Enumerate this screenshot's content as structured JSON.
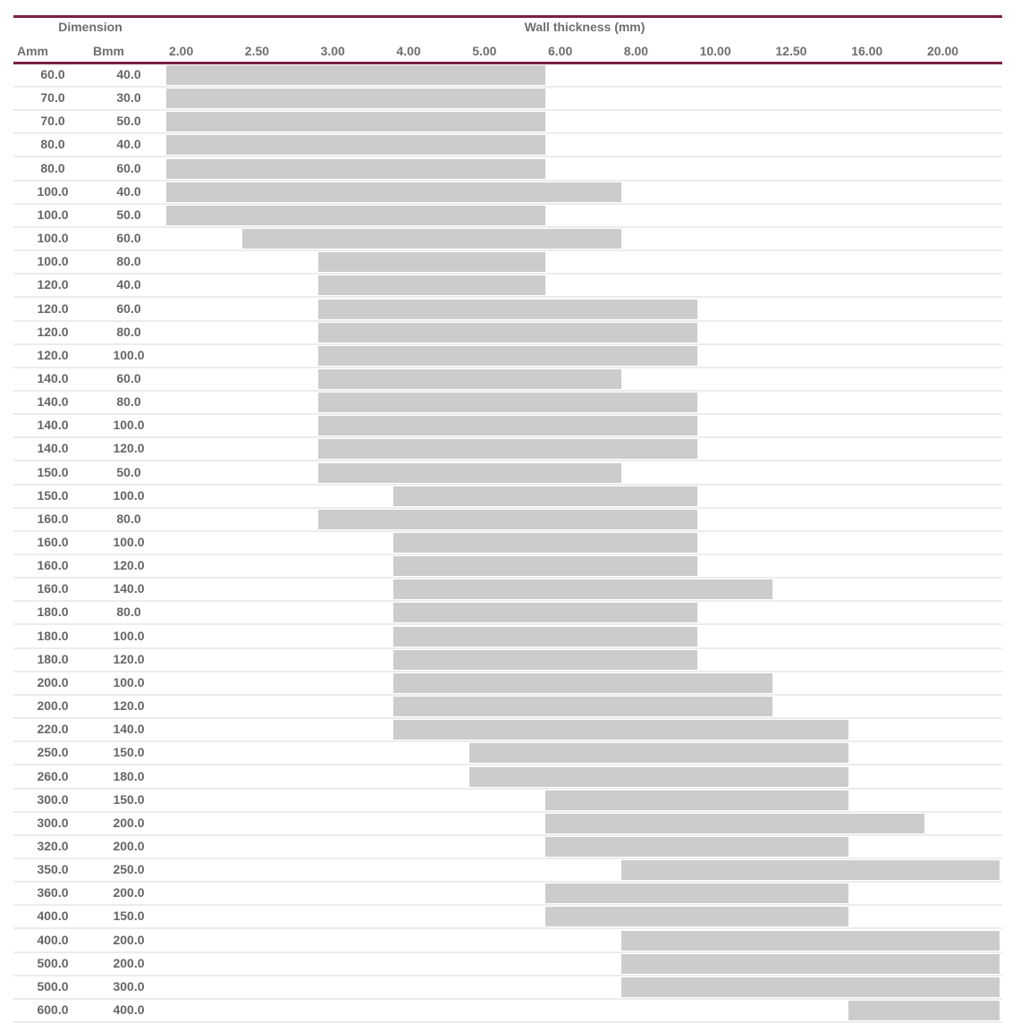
{
  "header": {
    "dimension_label": "Dimension",
    "wall_thickness_label": "Wall thickness (mm)",
    "col_a_label": "Amm",
    "col_b_label": "Bmm",
    "thickness_columns": [
      "2.00",
      "2.50",
      "3.00",
      "4.00",
      "5.00",
      "6.00",
      "8.00",
      "10.00",
      "12.50",
      "16.00",
      "20.00"
    ]
  },
  "colors": {
    "rule": "#7b1f45",
    "bar": "#cccccc",
    "text": "#666666"
  },
  "rows": [
    {
      "a": "60.0",
      "b": "40.0",
      "from": "2.00",
      "to": "5.00"
    },
    {
      "a": "70.0",
      "b": "30.0",
      "from": "2.00",
      "to": "5.00"
    },
    {
      "a": "70.0",
      "b": "50.0",
      "from": "2.00",
      "to": "5.00"
    },
    {
      "a": "80.0",
      "b": "40.0",
      "from": "2.00",
      "to": "5.00"
    },
    {
      "a": "80.0",
      "b": "60.0",
      "from": "2.00",
      "to": "5.00"
    },
    {
      "a": "100.0",
      "b": "40.0",
      "from": "2.00",
      "to": "6.00"
    },
    {
      "a": "100.0",
      "b": "50.0",
      "from": "2.00",
      "to": "5.00"
    },
    {
      "a": "100.0",
      "b": "60.0",
      "from": "2.50",
      "to": "6.00"
    },
    {
      "a": "100.0",
      "b": "80.0",
      "from": "3.00",
      "to": "5.00"
    },
    {
      "a": "120.0",
      "b": "40.0",
      "from": "3.00",
      "to": "5.00"
    },
    {
      "a": "120.0",
      "b": "60.0",
      "from": "3.00",
      "to": "8.00"
    },
    {
      "a": "120.0",
      "b": "80.0",
      "from": "3.00",
      "to": "8.00"
    },
    {
      "a": "120.0",
      "b": "100.0",
      "from": "3.00",
      "to": "8.00"
    },
    {
      "a": "140.0",
      "b": "60.0",
      "from": "3.00",
      "to": "6.00"
    },
    {
      "a": "140.0",
      "b": "80.0",
      "from": "3.00",
      "to": "8.00"
    },
    {
      "a": "140.0",
      "b": "100.0",
      "from": "3.00",
      "to": "8.00"
    },
    {
      "a": "140.0",
      "b": "120.0",
      "from": "3.00",
      "to": "8.00"
    },
    {
      "a": "150.0",
      "b": "50.0",
      "from": "3.00",
      "to": "6.00"
    },
    {
      "a": "150.0",
      "b": "100.0",
      "from": "4.00",
      "to": "8.00"
    },
    {
      "a": "160.0",
      "b": "80.0",
      "from": "3.00",
      "to": "8.00"
    },
    {
      "a": "160.0",
      "b": "100.0",
      "from": "4.00",
      "to": "8.00"
    },
    {
      "a": "160.0",
      "b": "120.0",
      "from": "4.00",
      "to": "8.00"
    },
    {
      "a": "160.0",
      "b": "140.0",
      "from": "4.00",
      "to": "10.00"
    },
    {
      "a": "180.0",
      "b": "80.0",
      "from": "4.00",
      "to": "8.00"
    },
    {
      "a": "180.0",
      "b": "100.0",
      "from": "4.00",
      "to": "8.00"
    },
    {
      "a": "180.0",
      "b": "120.0",
      "from": "4.00",
      "to": "8.00"
    },
    {
      "a": "200.0",
      "b": "100.0",
      "from": "4.00",
      "to": "10.00"
    },
    {
      "a": "200.0",
      "b": "120.0",
      "from": "4.00",
      "to": "10.00"
    },
    {
      "a": "220.0",
      "b": "140.0",
      "from": "4.00",
      "to": "12.50"
    },
    {
      "a": "250.0",
      "b": "150.0",
      "from": "5.00",
      "to": "12.50"
    },
    {
      "a": "260.0",
      "b": "180.0",
      "from": "5.00",
      "to": "12.50"
    },
    {
      "a": "300.0",
      "b": "150.0",
      "from": "6.00",
      "to": "12.50"
    },
    {
      "a": "300.0",
      "b": "200.0",
      "from": "6.00",
      "to": "16.00"
    },
    {
      "a": "320.0",
      "b": "200.0",
      "from": "6.00",
      "to": "12.50"
    },
    {
      "a": "350.0",
      "b": "250.0",
      "from": "8.00",
      "to": "20.00"
    },
    {
      "a": "360.0",
      "b": "200.0",
      "from": "6.00",
      "to": "12.50"
    },
    {
      "a": "400.0",
      "b": "150.0",
      "from": "6.00",
      "to": "12.50"
    },
    {
      "a": "400.0",
      "b": "200.0",
      "from": "8.00",
      "to": "20.00"
    },
    {
      "a": "500.0",
      "b": "200.0",
      "from": "8.00",
      "to": "20.00"
    },
    {
      "a": "500.0",
      "b": "300.0",
      "from": "8.00",
      "to": "20.00"
    },
    {
      "a": "600.0",
      "b": "400.0",
      "from": "16.00",
      "to": "20.00"
    }
  ]
}
